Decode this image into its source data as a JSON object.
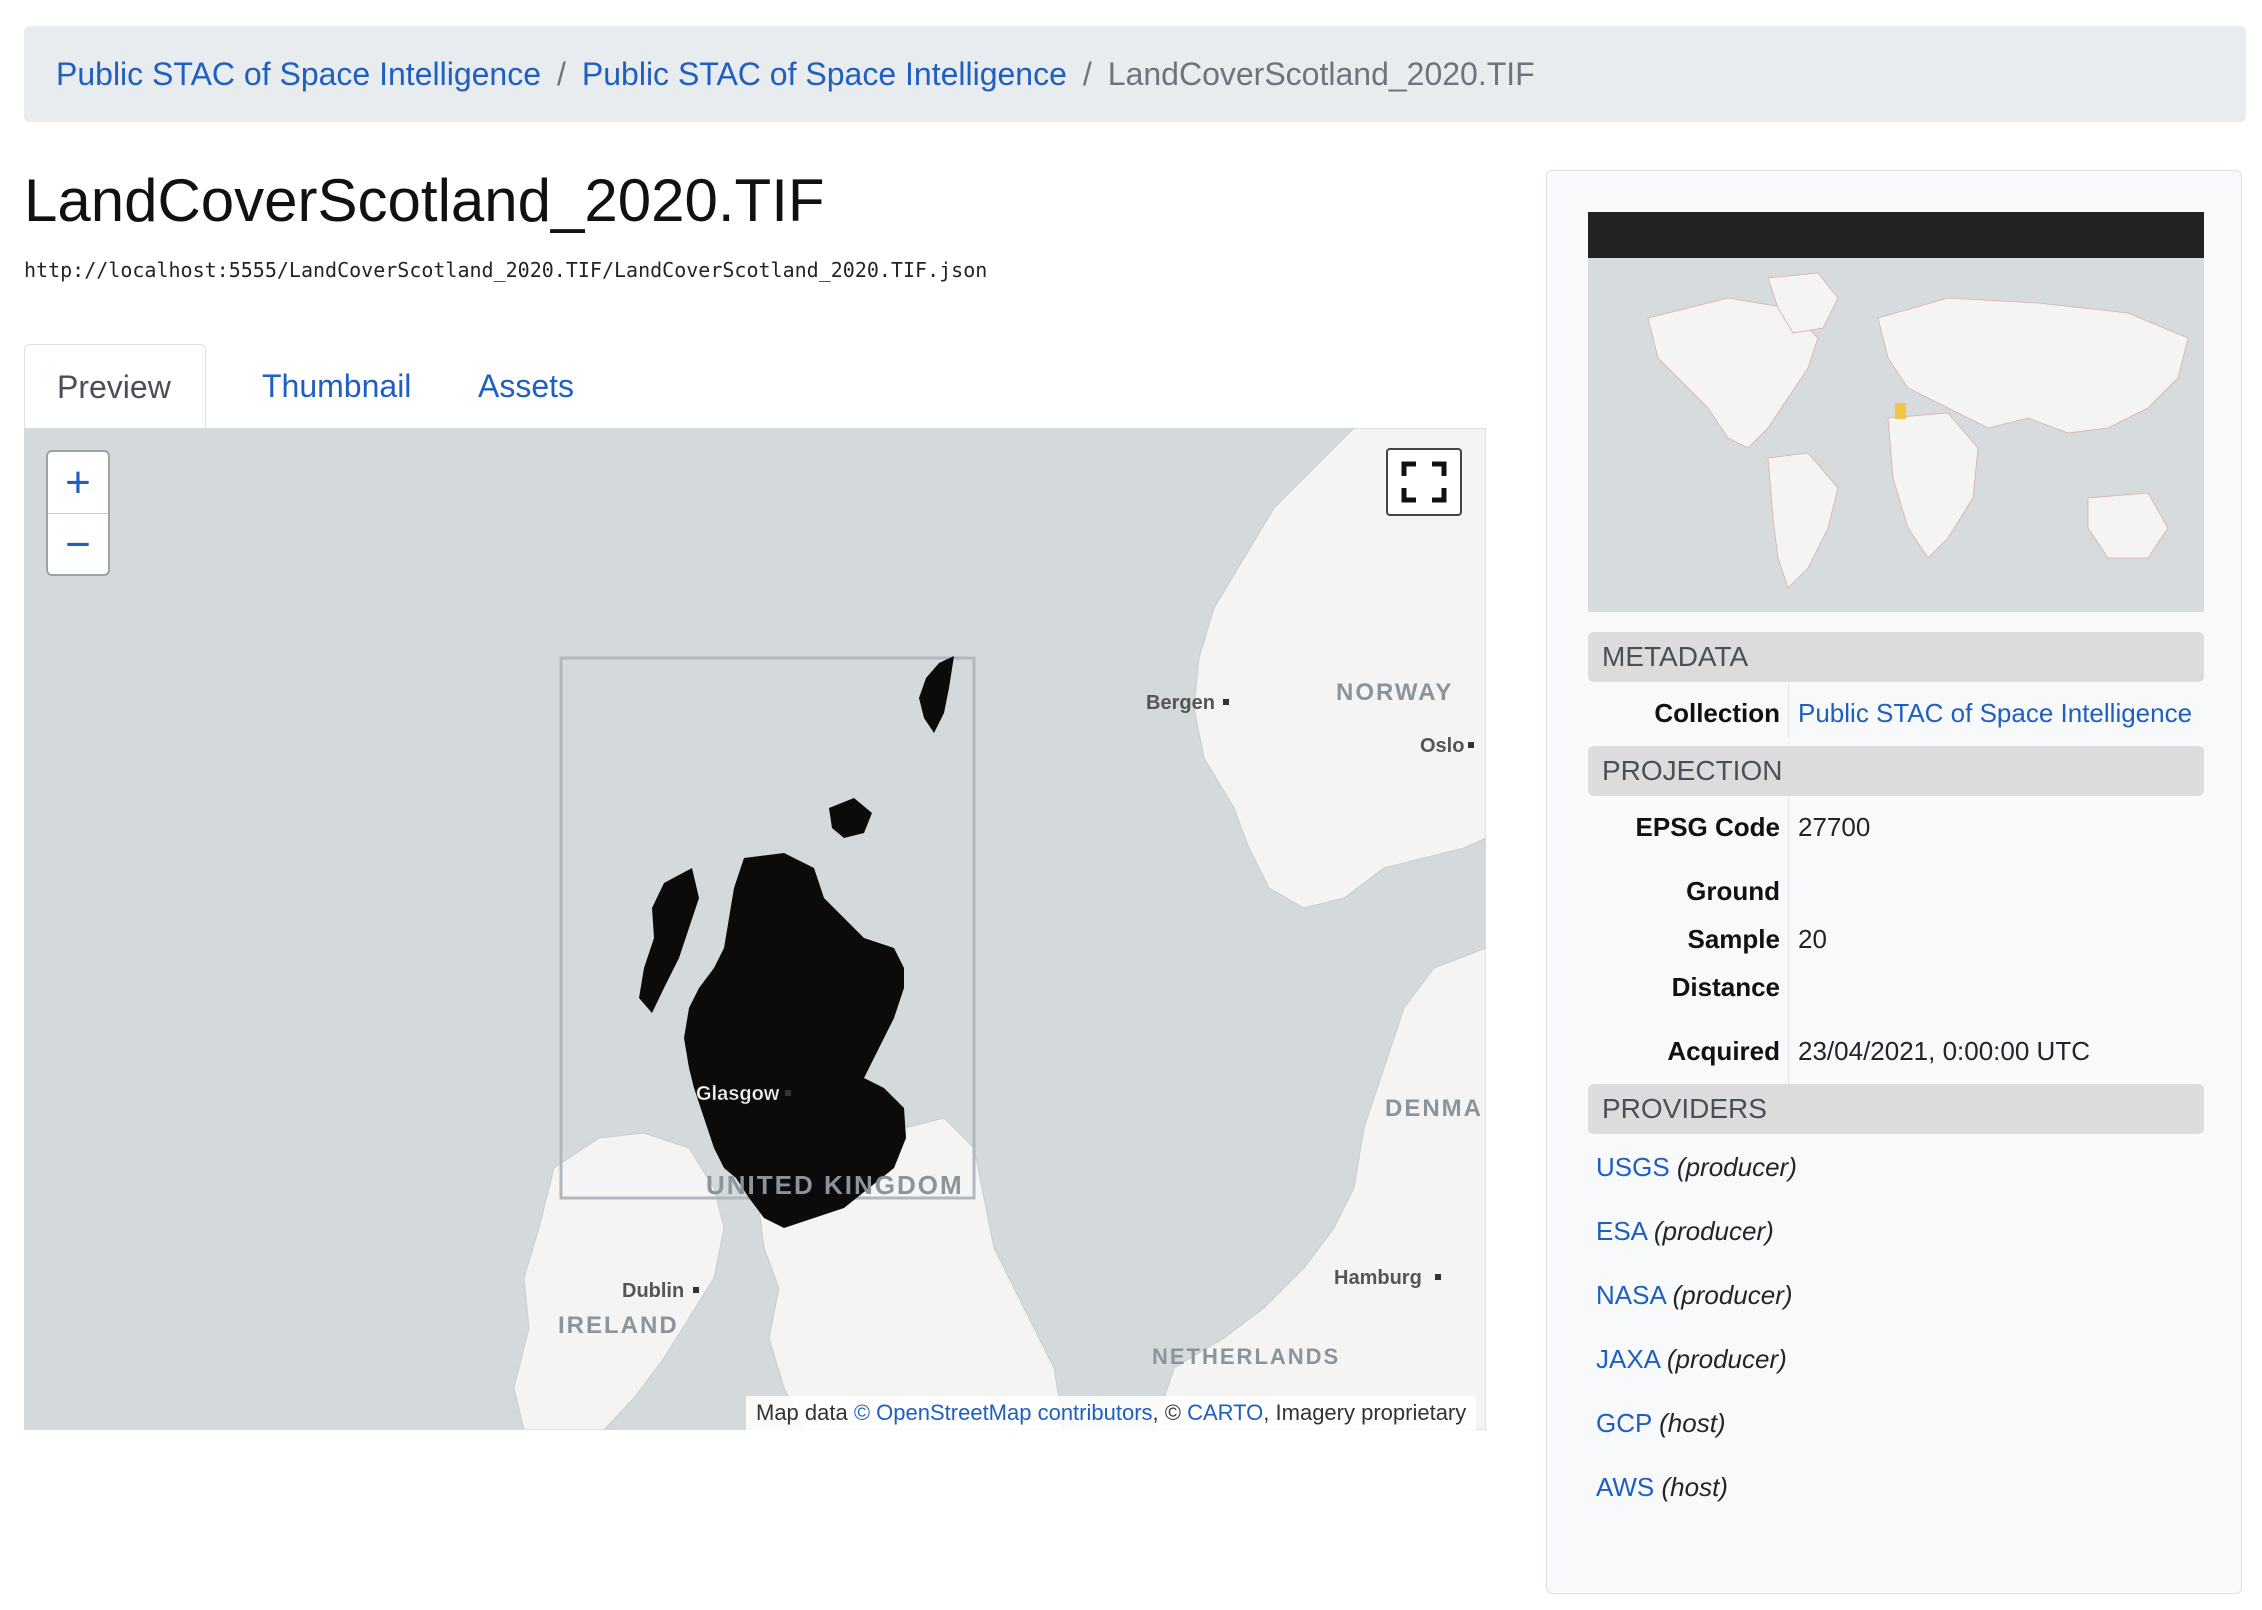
{
  "breadcrumb": {
    "items": [
      "Public STAC of Space Intelligence",
      "Public STAC of Space Intelligence"
    ],
    "current": "LandCoverScotland_2020.TIF",
    "separator": "/"
  },
  "page": {
    "title": "LandCoverScotland_2020.TIF",
    "url": "http://localhost:5555/LandCoverScotland_2020.TIF/LandCoverScotland_2020.TIF.json"
  },
  "tabs": [
    "Preview",
    "Thumbnail",
    "Assets"
  ],
  "map": {
    "zoom_in": "+",
    "zoom_out": "−",
    "labels": {
      "bergen": "Bergen",
      "norway": "NORWAY",
      "oslo": "Oslo",
      "glasgow": "Glasgow",
      "denmark": "DENMA",
      "united_kingdom": "UNITED KINGDOM",
      "dublin": "Dublin",
      "ireland": "IRELAND",
      "hamburg": "Hamburg",
      "netherlands": "NETHERLANDS"
    },
    "attribution": {
      "prefix": "Map data ",
      "osm": "© OpenStreetMap contributors",
      "mid": ", © ",
      "carto": "CARTO",
      "suffix": ", Imagery proprietary"
    }
  },
  "sidebar": {
    "metadata_heading": "METADATA",
    "collection_label": "Collection",
    "collection_value": "Public STAC of Space Intelligence",
    "projection_heading": "PROJECTION",
    "epsg_label": "EPSG Code",
    "epsg_value": "27700",
    "gsd_label_1": "Ground",
    "gsd_label_2": "Sample",
    "gsd_label_3": "Distance",
    "gsd_value": "20",
    "acquired_label": "Acquired",
    "acquired_value": "23/04/2021, 0:00:00 UTC",
    "providers_heading": "PROVIDERS",
    "providers": [
      {
        "name": "USGS",
        "role": "(producer)"
      },
      {
        "name": "ESA",
        "role": "(producer)"
      },
      {
        "name": "NASA",
        "role": "(producer)"
      },
      {
        "name": "JAXA",
        "role": "(producer)"
      },
      {
        "name": "GCP",
        "role": "(host)"
      },
      {
        "name": "AWS",
        "role": "(host)"
      }
    ]
  },
  "colors": {
    "link": "#1f5fbf",
    "sea": "#d4dadc",
    "land": "#f4f4f4",
    "raster": "#0b0b0b",
    "extent_marker": "#f5c542"
  }
}
